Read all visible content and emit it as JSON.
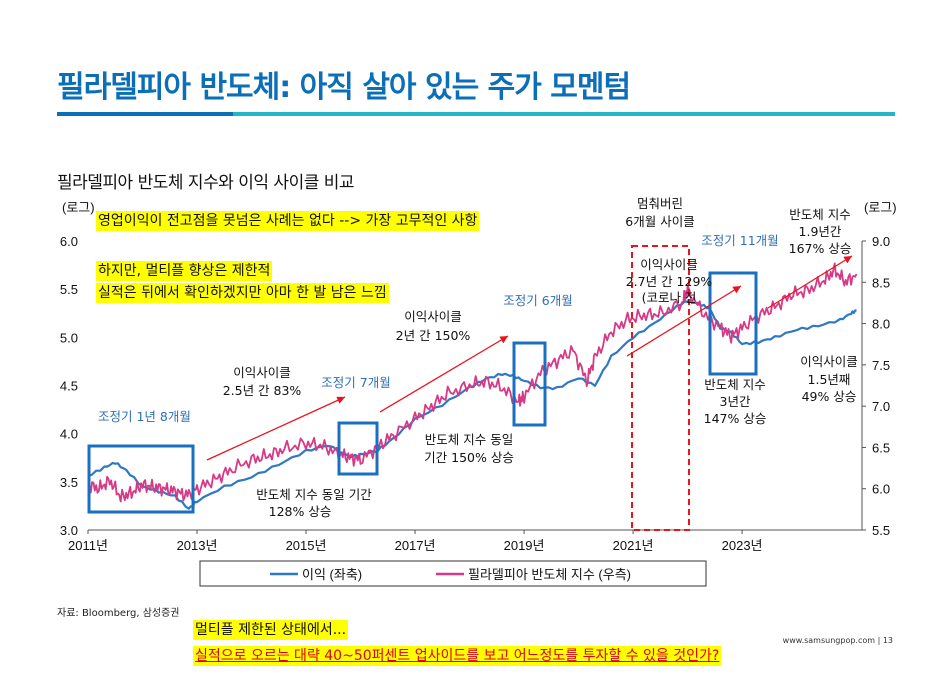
{
  "slide": {
    "title": "필라델피아 반도체: 아직 살아 있는 주가 모멘텀",
    "chart_heading": "필라델피아 반도체 지수와 이익 사이클 비교",
    "source": "자료: Bloomberg, 삼성증권",
    "footer": "www.samsungpop.com | 13"
  },
  "callouts": {
    "top": "영업이익이 전고점을 못넘은 사례는 없다 --> 가장 고무적인 사항",
    "mid_line1": "하지만, 멀티플 향상은 제한적",
    "mid_line2": "실적은 뒤에서 확인하겠지만 아마 한 발 남은 느낌",
    "bottom_line1": "멀티플 제한된 상태에서...",
    "bottom_line2": "실적으로 오르는 대략 40~50퍼센트 업사이드를 보고 어느정도를 투자할 수 있을 것인가?"
  },
  "annotations": {
    "corr1": "조정기 1년 8개월",
    "corr2": "조정기 7개월",
    "corr3": "조정기 6개월",
    "corr4": "조정기 11개월",
    "cycle1_l1": "이익사이클",
    "cycle1_l2": "2.5년 간 83%",
    "cycle1_sox_l1": "반도체 지수 동일 기간",
    "cycle1_sox_l2": "128% 상승",
    "cycle2_l1": "이익사이클",
    "cycle2_l2": "2년 간 150%",
    "cycle2_sox_l1": "반도체 지수 동일",
    "cycle2_sox_l2": "기간 150% 상승",
    "stall_l1": "멈춰버린",
    "stall_l2": "6개월 사이클",
    "cycle3_l1": "이익사이클",
    "cycle3_l2": "2.7년 간 129%",
    "cycle3_l3": "(코로나 전",
    "cycle3_sox_l1": "반도체 지수",
    "cycle3_sox_l2": "3년간",
    "cycle3_sox_l3": "147% 상승",
    "sox_now_l1": "반도체 지수",
    "sox_now_l2": "1.9년간",
    "sox_now_l3": "167% 상승",
    "cycle4_l1": "이익사이클",
    "cycle4_l2": "1.5년째",
    "cycle4_l3": "49% 상승"
  },
  "chart_data": {
    "type": "line",
    "x_axis": {
      "ticks": [
        "2011년",
        "2013년",
        "2015년",
        "2017년",
        "2019년",
        "2021년",
        "2023년"
      ],
      "range": [
        2011.0,
        2025.2
      ]
    },
    "y_left": {
      "label": "(로그)",
      "ticks": [
        "3.0",
        "3.5",
        "4.0",
        "4.5",
        "5.0",
        "5.5",
        "6.0"
      ],
      "range": [
        3.0,
        6.0
      ]
    },
    "y_right": {
      "label": "(로그)",
      "ticks": [
        "5.5",
        "6.0",
        "6.5",
        "7.0",
        "7.5",
        "8.0",
        "8.5",
        "9.0"
      ],
      "range": [
        5.5,
        9.0
      ]
    },
    "legend": {
      "placement": "bottom"
    },
    "colors": {
      "earnings": "#2e78c4",
      "sox": "#d63a86",
      "box": "#1a6fc0",
      "arrow": "#e8141e",
      "stall": "#e8141e"
    },
    "series": [
      {
        "name": "이익 (좌축)",
        "axis": "left",
        "x": [
          2011.0,
          2011.3,
          2011.5,
          2011.7,
          2012.0,
          2012.3,
          2012.6,
          2012.85,
          2013.0,
          2013.5,
          2014.0,
          2014.5,
          2015.0,
          2015.4,
          2015.8,
          2016.0,
          2016.3,
          2016.6,
          2017.0,
          2017.5,
          2018.0,
          2018.3,
          2018.6,
          2018.8,
          2019.0,
          2019.3,
          2019.6,
          2020.0,
          2020.3,
          2020.6,
          2021.0,
          2021.4,
          2021.8,
          2022.0,
          2022.2,
          2022.4,
          2022.6,
          2022.8,
          2023.0,
          2023.3,
          2023.6,
          2024.0,
          2024.4,
          2024.8,
          2025.0,
          2025.1
        ],
        "y": [
          3.56,
          3.65,
          3.7,
          3.62,
          3.45,
          3.4,
          3.35,
          3.22,
          3.3,
          3.45,
          3.55,
          3.68,
          3.82,
          3.88,
          3.76,
          3.78,
          3.82,
          3.95,
          4.15,
          4.3,
          4.48,
          4.57,
          4.62,
          4.6,
          4.55,
          4.48,
          4.47,
          4.58,
          4.5,
          4.8,
          5.0,
          5.15,
          5.32,
          5.38,
          5.35,
          5.3,
          5.1,
          5.05,
          4.93,
          4.95,
          5.0,
          5.08,
          5.12,
          5.18,
          5.25,
          5.28
        ]
      },
      {
        "name": "필라델피아 반도체 지수 (우측)",
        "axis": "right",
        "x": [
          2011.0,
          2011.2,
          2011.4,
          2011.6,
          2011.8,
          2012.0,
          2012.2,
          2012.4,
          2012.6,
          2012.8,
          2013.0,
          2013.3,
          2013.6,
          2014.0,
          2014.3,
          2014.6,
          2015.0,
          2015.3,
          2015.6,
          2015.8,
          2016.0,
          2016.3,
          2016.6,
          2017.0,
          2017.3,
          2017.6,
          2018.0,
          2018.3,
          2018.6,
          2018.9,
          2019.0,
          2019.3,
          2019.6,
          2019.9,
          2020.15,
          2020.3,
          2020.6,
          2020.9,
          2021.2,
          2021.5,
          2021.9,
          2022.0,
          2022.3,
          2022.6,
          2022.8,
          2023.0,
          2023.3,
          2023.6,
          2023.9,
          2024.2,
          2024.5,
          2024.7,
          2024.9,
          2025.1
        ],
        "y": [
          6.05,
          6.0,
          6.1,
          5.9,
          5.95,
          6.05,
          6.02,
          6.0,
          5.97,
          5.92,
          6.0,
          6.1,
          6.22,
          6.35,
          6.4,
          6.48,
          6.55,
          6.52,
          6.42,
          6.38,
          6.35,
          6.5,
          6.65,
          6.85,
          7.0,
          7.15,
          7.25,
          7.3,
          7.22,
          7.05,
          7.12,
          7.4,
          7.55,
          7.68,
          7.3,
          7.6,
          7.9,
          8.05,
          8.1,
          8.12,
          8.25,
          8.4,
          8.12,
          7.95,
          7.85,
          7.95,
          8.1,
          8.2,
          8.35,
          8.4,
          8.52,
          8.65,
          8.5,
          8.6
        ]
      }
    ]
  }
}
